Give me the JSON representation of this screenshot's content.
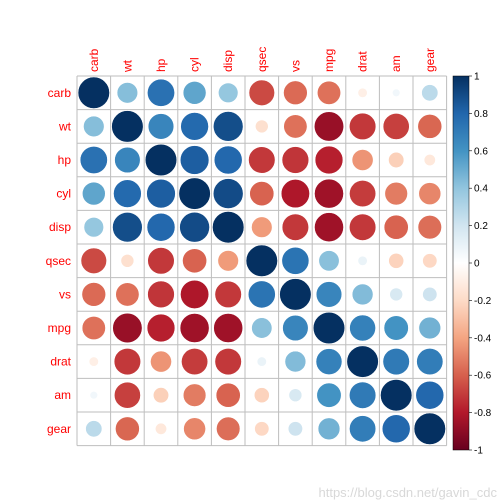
{
  "chart_data": {
    "type": "heatmap",
    "variables": [
      "carb",
      "wt",
      "hp",
      "cyl",
      "disp",
      "qsec",
      "vs",
      "mpg",
      "drat",
      "am",
      "gear"
    ],
    "matrix": [
      [
        1.0,
        0.43,
        0.75,
        0.53,
        0.39,
        -0.66,
        -0.57,
        -0.55,
        -0.09,
        0.06,
        0.27
      ],
      [
        0.43,
        1.0,
        0.66,
        0.78,
        0.89,
        -0.17,
        -0.55,
        -0.87,
        -0.71,
        -0.69,
        -0.58
      ],
      [
        0.75,
        0.66,
        1.0,
        0.83,
        0.79,
        -0.71,
        -0.72,
        -0.78,
        -0.45,
        -0.24,
        -0.13
      ],
      [
        0.53,
        0.78,
        0.83,
        1.0,
        0.9,
        -0.59,
        -0.81,
        -0.85,
        -0.7,
        -0.52,
        -0.49
      ],
      [
        0.39,
        0.89,
        0.79,
        0.9,
        1.0,
        -0.43,
        -0.71,
        -0.85,
        -0.71,
        -0.59,
        -0.56
      ],
      [
        -0.66,
        -0.17,
        -0.71,
        -0.59,
        -0.43,
        1.0,
        0.74,
        0.42,
        0.09,
        -0.23,
        -0.21
      ],
      [
        -0.57,
        -0.55,
        -0.72,
        -0.81,
        -0.71,
        0.74,
        1.0,
        0.66,
        0.44,
        0.17,
        0.21
      ],
      [
        -0.55,
        -0.87,
        -0.78,
        -0.85,
        -0.85,
        0.42,
        0.66,
        1.0,
        0.68,
        0.6,
        0.48
      ],
      [
        -0.09,
        -0.71,
        -0.45,
        -0.7,
        -0.71,
        0.09,
        0.44,
        0.68,
        1.0,
        0.71,
        0.7
      ],
      [
        0.06,
        -0.69,
        -0.24,
        -0.52,
        -0.59,
        -0.23,
        0.17,
        0.6,
        0.71,
        1.0,
        0.79
      ],
      [
        0.27,
        -0.58,
        -0.13,
        -0.49,
        -0.56,
        -0.21,
        0.21,
        0.48,
        0.7,
        0.79,
        1.0
      ]
    ],
    "colorbar": {
      "range": [
        -1,
        1
      ],
      "ticks": [
        "-1",
        "-0.8",
        "-0.6",
        "-0.4",
        "-0.2",
        "0",
        "0.2",
        "0.4",
        "0.6",
        "0.8",
        "1"
      ]
    },
    "palette": [
      "#67001F",
      "#B2182B",
      "#D6604D",
      "#F4A582",
      "#FDDBC7",
      "#FFFFFF",
      "#D1E5F0",
      "#92C5DE",
      "#4393C3",
      "#2166AC",
      "#053061"
    ],
    "label_color": "#FF0000",
    "grid_color": "#BEBEBE"
  },
  "watermark": "https://blog.csdn.net/gavin_cdc"
}
